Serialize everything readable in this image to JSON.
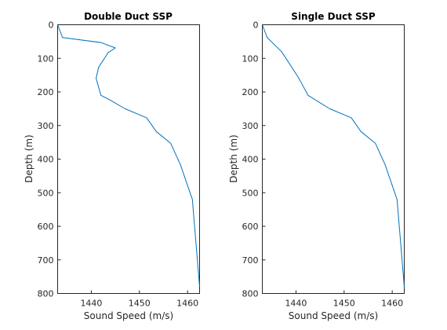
{
  "chart_data": [
    {
      "type": "line",
      "title": "Double Duct SSP",
      "xlabel": "Sound Speed (m/s)",
      "ylabel": "Depth (m)",
      "xlim": [
        1433,
        1462.5
      ],
      "ylim": [
        0,
        800
      ],
      "y_reversed": true,
      "xticks": [
        1440,
        1450,
        1460
      ],
      "yticks": [
        0,
        100,
        200,
        300,
        400,
        500,
        600,
        700,
        800
      ],
      "grid": false,
      "line_color": "#0072bd",
      "series": [
        {
          "x": [
            1433,
            1434,
            1442,
            1445,
            1443.5,
            1441.5,
            1441,
            1442,
            1444,
            1447,
            1451.5,
            1453.5,
            1456.5,
            1458.5,
            1461,
            1462.5
          ],
          "y": [
            0,
            38,
            53,
            69,
            83,
            127,
            160,
            210,
            225,
            250,
            277,
            318,
            353,
            416,
            520,
            780
          ]
        }
      ]
    },
    {
      "type": "line",
      "title": "Single Duct SSP",
      "xlabel": "Sound Speed (m/s)",
      "ylabel": "Depth (m)",
      "xlim": [
        1433,
        1462.5
      ],
      "ylim": [
        0,
        800
      ],
      "y_reversed": true,
      "xticks": [
        1440,
        1450,
        1460
      ],
      "yticks": [
        0,
        100,
        200,
        300,
        400,
        500,
        600,
        700,
        800
      ],
      "grid": false,
      "line_color": "#0072bd",
      "series": [
        {
          "x": [
            1433,
            1434,
            1437,
            1440.5,
            1442.5,
            1444.5,
            1447,
            1451.5,
            1453.5,
            1456.5,
            1458.5,
            1461,
            1462.5
          ],
          "y": [
            0,
            38,
            80,
            157,
            210,
            228,
            250,
            277,
            318,
            353,
            416,
            520,
            780
          ]
        }
      ]
    }
  ]
}
